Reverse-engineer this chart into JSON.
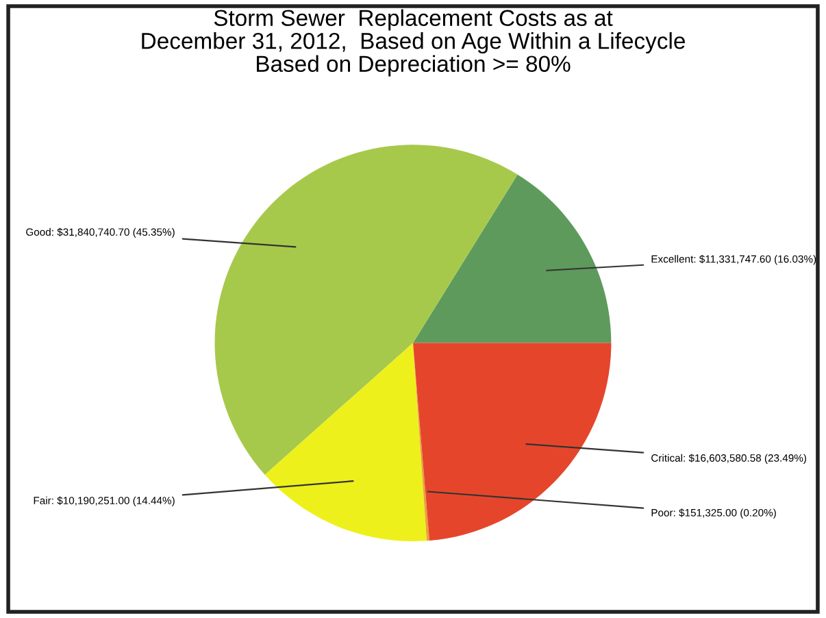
{
  "chart_data": {
    "type": "pie",
    "title": "Storm Sewer  Replacement Costs as at\nDecember 31, 2012,  Based on Age Within a Lifecycle\nBased on Depreciation >= 80%",
    "categories": [
      "Excellent",
      "Good",
      "Fair",
      "Poor",
      "Critical"
    ],
    "values": [
      11331747.6,
      31840740.7,
      10190251.0,
      151325.0,
      16603580.58
    ],
    "value_labels": [
      "$11,331,747.60 (16.03%)",
      "$31,840,740.70 (45.35%)",
      "$10,190,251.00 (14.44%)",
      "$151,325.00 (0.20%)",
      "$16,603,580.58 (23.49%)"
    ],
    "colors": [
      "#5e9a5c",
      "#a7c94b",
      "#eef01c",
      "#e8a23a",
      "#e5462b"
    ]
  }
}
